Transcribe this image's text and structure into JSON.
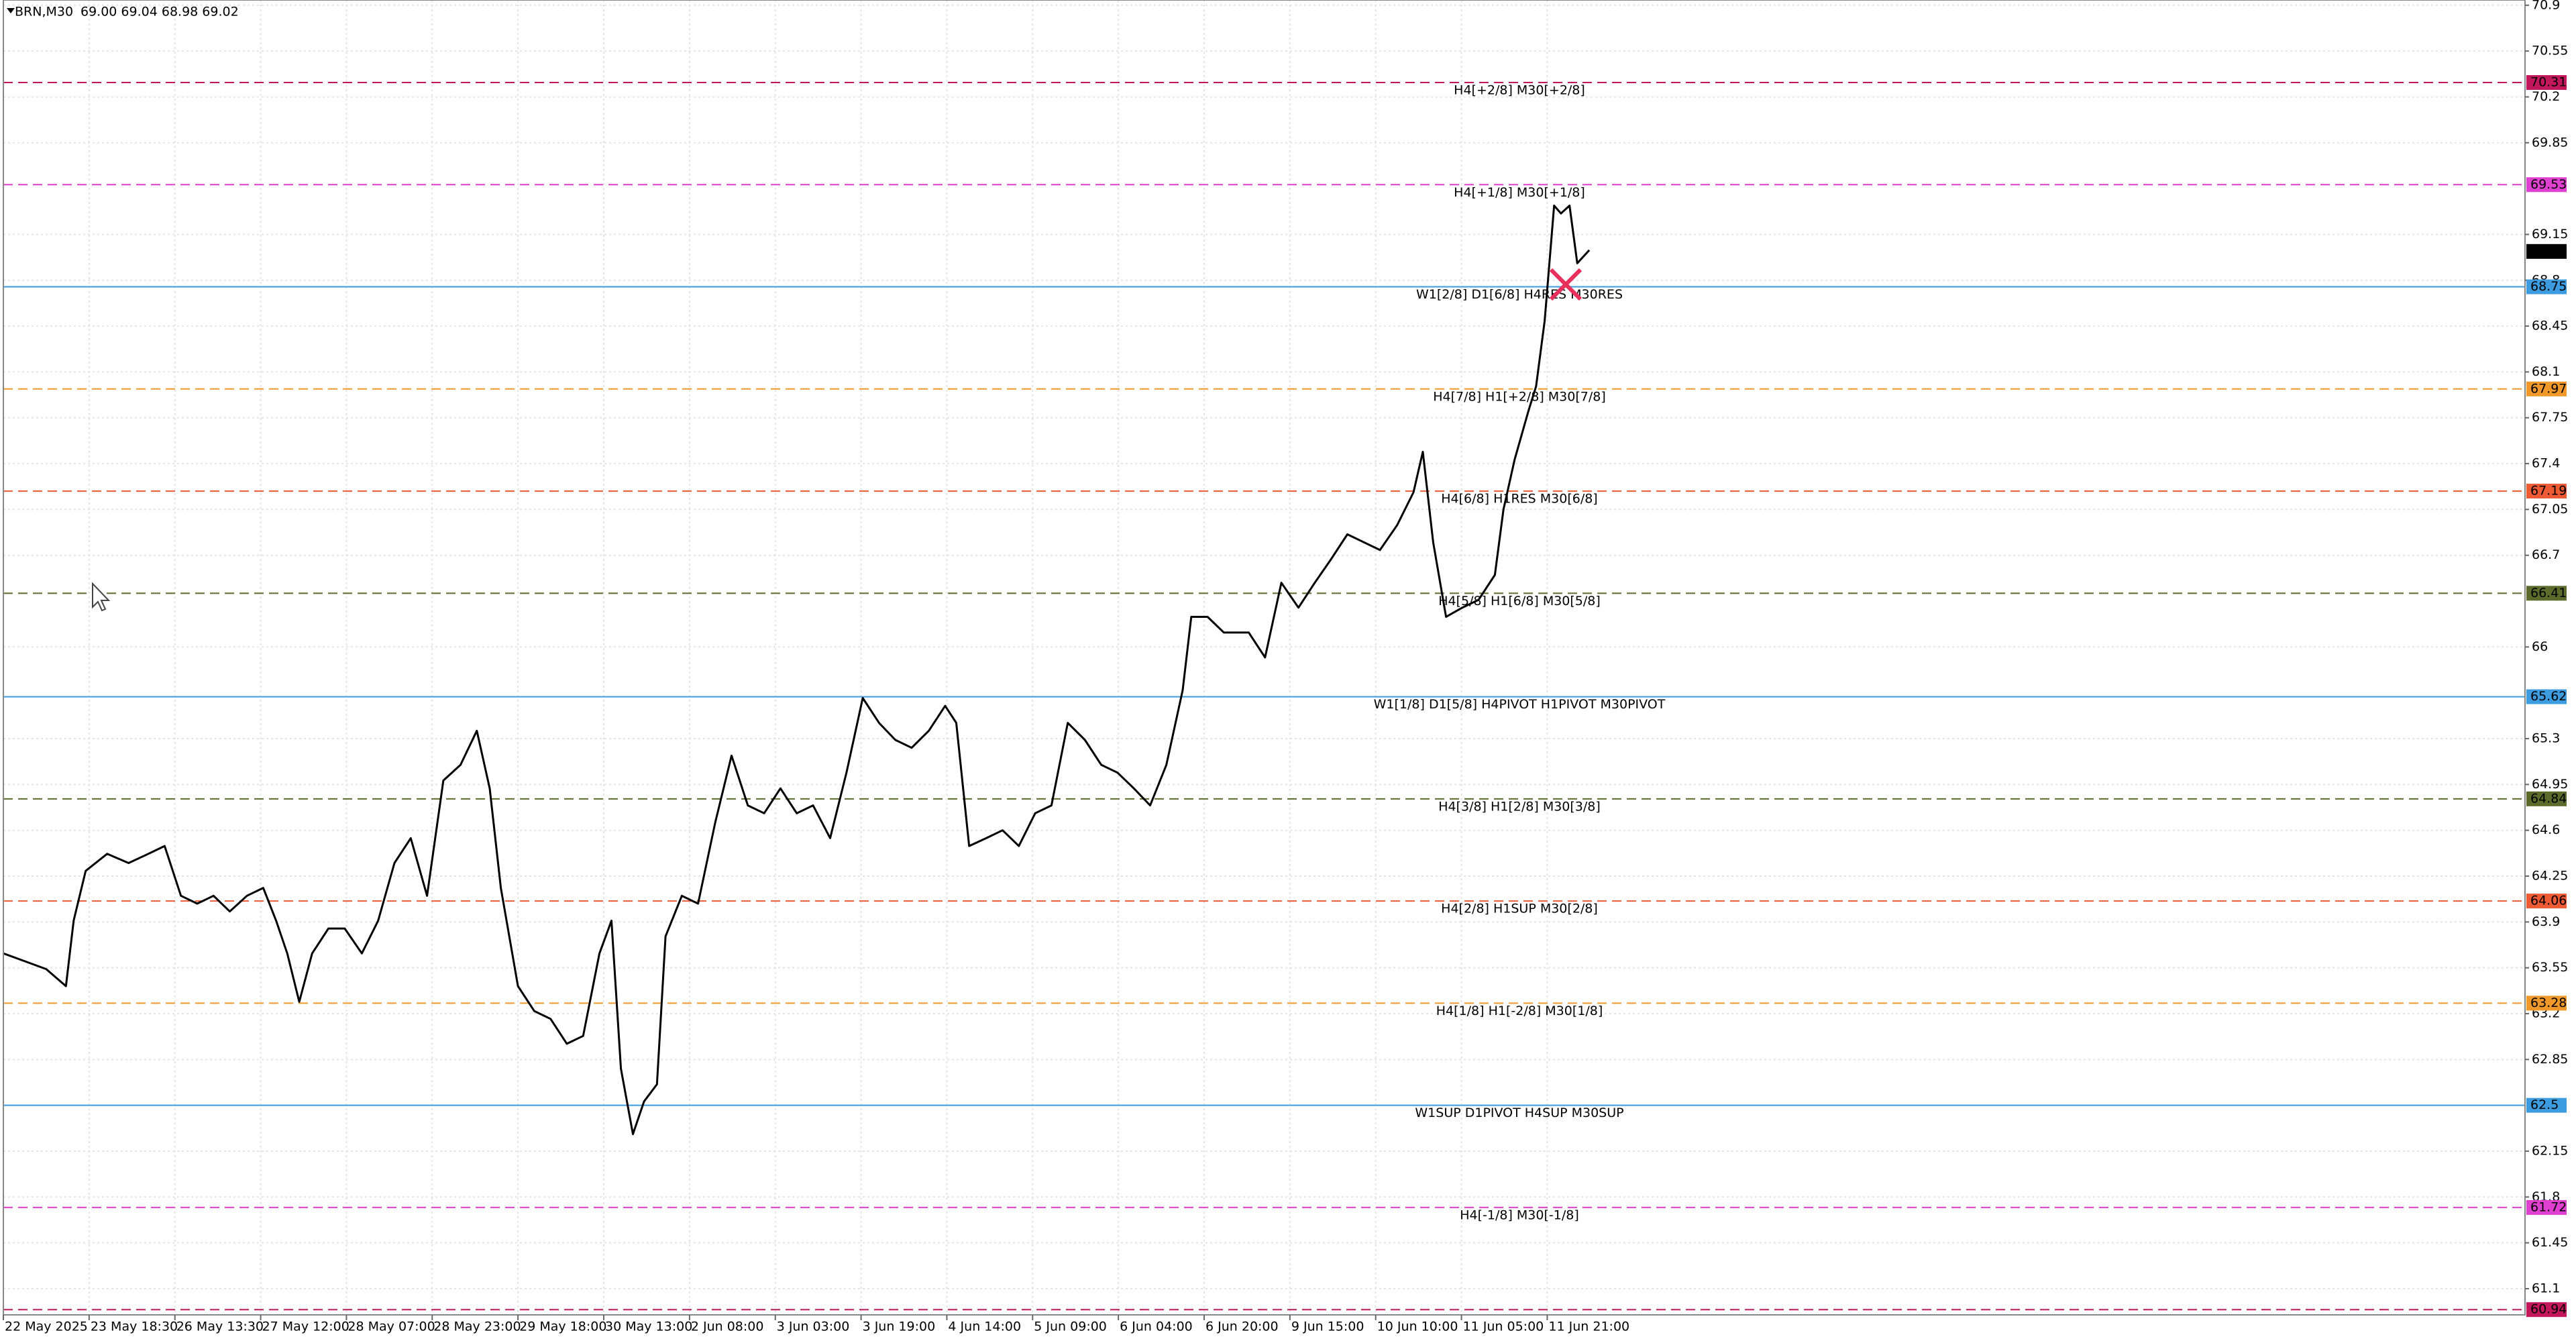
{
  "chart_data": {
    "type": "line",
    "symbol": "BRN,M30",
    "ohlc": "69.00 69.04 68.98 69.02",
    "last_price": 69.02,
    "color": "#000000",
    "grid": true,
    "xlim": [
      0,
      29.4
    ],
    "ylim": [
      60.9,
      70.94
    ],
    "xticks": [
      {
        "value": 0,
        "label": "22 May 2025"
      },
      {
        "value": 1,
        "label": "23 May 18:30"
      },
      {
        "value": 2,
        "label": "26 May 13:30"
      },
      {
        "value": 3,
        "label": "27 May 12:00"
      },
      {
        "value": 4,
        "label": "28 May 07:00"
      },
      {
        "value": 5,
        "label": "28 May 23:00"
      },
      {
        "value": 6,
        "label": "29 May 18:00"
      },
      {
        "value": 7,
        "label": "30 May 13:00"
      },
      {
        "value": 8,
        "label": "2 Jun 08:00"
      },
      {
        "value": 9,
        "label": "3 Jun 03:00"
      },
      {
        "value": 10,
        "label": "3 Jun 19:00"
      },
      {
        "value": 11,
        "label": "4 Jun 14:00"
      },
      {
        "value": 12,
        "label": "5 Jun 09:00"
      },
      {
        "value": 13,
        "label": "6 Jun 04:00"
      },
      {
        "value": 14,
        "label": "6 Jun 20:00"
      },
      {
        "value": 15,
        "label": "9 Jun 15:00"
      },
      {
        "value": 16,
        "label": "10 Jun 10:00"
      },
      {
        "value": 17,
        "label": "11 Jun 05:00"
      },
      {
        "value": 18,
        "label": "11 Jun 21:00"
      }
    ],
    "yticks": [
      70.9,
      70.55,
      70.2,
      69.85,
      69.15,
      68.8,
      68.45,
      68.1,
      67.75,
      67.4,
      67.05,
      66.7,
      66.0,
      65.3,
      64.95,
      64.6,
      64.25,
      63.9,
      63.55,
      63.2,
      62.85,
      62.15,
      61.8,
      61.45,
      61.1
    ],
    "levels": [
      {
        "value": 70.31,
        "label": "H4[+2/8] M30[+2/8]",
        "color": "#c2185b",
        "dashed": true
      },
      {
        "value": 69.53,
        "label": "H4[+1/8] M30[+1/8]",
        "color": "#e040d0",
        "dashed": true
      },
      {
        "value": 68.75,
        "label": "W1[2/8] D1[6/8] H4RES M30RES",
        "color": "#3d9be0",
        "dashed": false
      },
      {
        "value": 67.97,
        "label": "H4[7/8] H1[+2/8] M30[7/8]",
        "color": "#f0982a",
        "dashed": true
      },
      {
        "value": 67.19,
        "label": "H4[6/8] H1RES M30[6/8]",
        "color": "#ee5a34",
        "dashed": true
      },
      {
        "value": 66.41,
        "label": "H4[5/8] H1[6/8] M30[5/8]",
        "color": "#5c6b2c",
        "dashed": true
      },
      {
        "value": 65.62,
        "label": "W1[1/8] D1[5/8] H4PIVOT H1PIVOT M30PIVOT",
        "color": "#3d9be0",
        "dashed": false
      },
      {
        "value": 64.84,
        "label": "H4[3/8] H1[2/8] M30[3/8]",
        "color": "#5c6b2c",
        "dashed": true
      },
      {
        "value": 64.06,
        "label": "H4[2/8] H1SUP M30[2/8]",
        "color": "#ee5a34",
        "dashed": true
      },
      {
        "value": 63.28,
        "label": "H4[1/8] H1[-2/8] M30[1/8]",
        "color": "#f0982a",
        "dashed": true
      },
      {
        "value": 62.5,
        "label": "W1SUP D1PIVOT H4SUP M30SUP",
        "color": "#3d9be0",
        "dashed": false
      },
      {
        "value": 61.72,
        "label": "H4[-1/8] M30[-1/8]",
        "color": "#e040d0",
        "dashed": true
      },
      {
        "value": 60.94,
        "color": "#c2185b",
        "dashed": true
      }
    ],
    "x": [
      0,
      0.25,
      0.5,
      0.73,
      0.82,
      0.96,
      1.21,
      1.46,
      1.69,
      1.88,
      2.07,
      2.26,
      2.45,
      2.64,
      2.84,
      3.03,
      3.18,
      3.31,
      3.45,
      3.6,
      3.79,
      3.98,
      4.18,
      4.37,
      4.56,
      4.75,
      4.94,
      5.13,
      5.33,
      5.52,
      5.67,
      5.8,
      6.0,
      6.19,
      6.38,
      6.57,
      6.76,
      6.95,
      7.09,
      7.2,
      7.34,
      7.47,
      7.62,
      7.72,
      7.91,
      8.1,
      8.3,
      8.49,
      8.68,
      8.87,
      9.06,
      9.25,
      9.44,
      9.64,
      9.83,
      10.02,
      10.21,
      10.4,
      10.59,
      10.79,
      10.98,
      11.11,
      11.26,
      11.46,
      11.65,
      11.84,
      12.03,
      12.22,
      12.41,
      12.61,
      12.8,
      12.99,
      13.18,
      13.37,
      13.56,
      13.75,
      13.85,
      14.04,
      14.23,
      14.52,
      14.71,
      14.9,
      15.1,
      15.29,
      15.48,
      15.67,
      15.86,
      16.05,
      16.25,
      16.44,
      16.55,
      16.67,
      16.82,
      17.01,
      17.2,
      17.39,
      17.49,
      17.62,
      17.78,
      17.87,
      17.97,
      18.08,
      18.16,
      18.26,
      18.35,
      18.49
    ],
    "values": [
      63.66,
      63.6,
      63.54,
      63.41,
      63.91,
      64.29,
      64.42,
      64.35,
      64.42,
      64.48,
      64.1,
      64.04,
      64.1,
      63.98,
      64.1,
      64.16,
      63.91,
      63.66,
      63.29,
      63.66,
      63.85,
      63.85,
      63.66,
      63.91,
      64.35,
      64.54,
      64.1,
      64.98,
      65.1,
      65.36,
      64.92,
      64.16,
      63.41,
      63.22,
      63.16,
      62.97,
      63.03,
      63.66,
      63.91,
      62.78,
      62.28,
      62.53,
      62.66,
      63.79,
      64.1,
      64.04,
      64.66,
      65.17,
      64.79,
      64.73,
      64.92,
      64.73,
      64.79,
      64.54,
      65.04,
      65.61,
      65.42,
      65.29,
      65.23,
      65.36,
      65.55,
      65.42,
      64.48,
      64.54,
      64.6,
      64.48,
      64.73,
      64.79,
      65.42,
      65.29,
      65.1,
      65.04,
      64.92,
      64.79,
      65.1,
      65.67,
      66.23,
      66.23,
      66.11,
      66.11,
      65.92,
      66.49,
      66.3,
      66.49,
      66.67,
      66.86,
      66.8,
      66.74,
      66.93,
      67.18,
      67.49,
      66.8,
      66.23,
      66.3,
      66.36,
      66.55,
      67.05,
      67.43,
      67.8,
      67.99,
      68.49,
      69.37,
      69.31,
      69.37,
      68.93,
      69.03
    ]
  }
}
